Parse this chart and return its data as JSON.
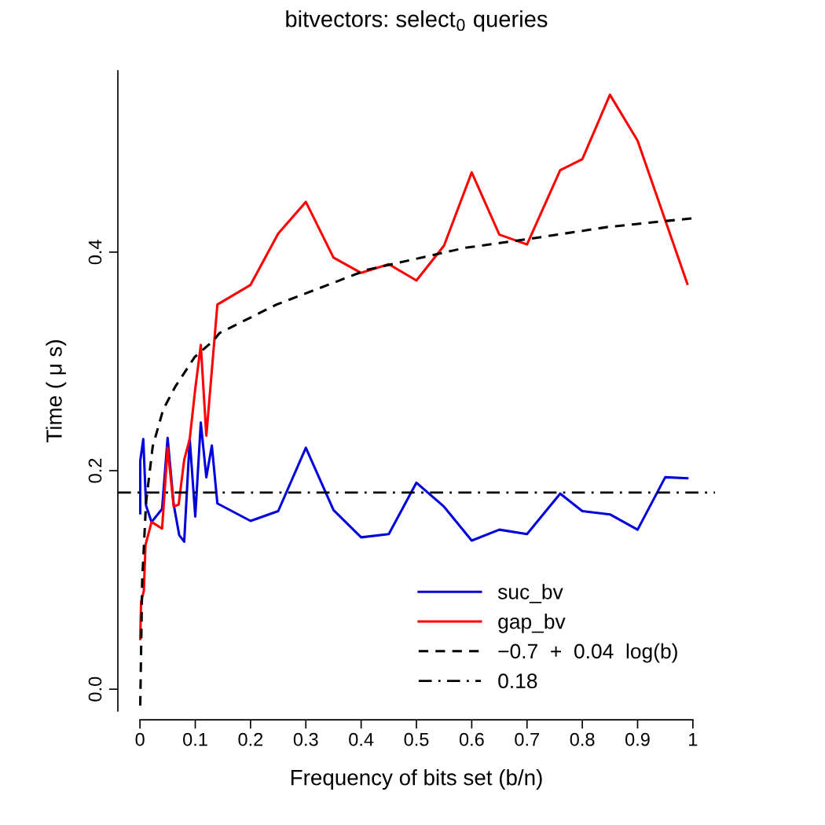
{
  "chart_data": {
    "type": "line",
    "title": "bitvectors: select$_{0}$ queries",
    "xlabel": "Frequency of bits set (b/n)",
    "ylabel": "Time ( μ s)",
    "series": [
      {
        "name": "suc_bv",
        "color": "#0000dd",
        "line_style": "solid",
        "x": [
          0.0005,
          0.0005,
          0.006,
          0.011,
          0.021,
          0.04,
          0.05,
          0.061,
          0.071,
          0.08,
          0.09,
          0.1,
          0.11,
          0.12,
          0.13,
          0.14,
          0.2,
          0.25,
          0.3,
          0.35,
          0.4,
          0.45,
          0.5,
          0.55,
          0.6,
          0.65,
          0.7,
          0.76,
          0.8,
          0.85,
          0.9,
          0.95,
          0.99
        ],
        "values": [
          0.161,
          0.209,
          0.229,
          0.168,
          0.153,
          0.165,
          0.23,
          0.169,
          0.141,
          0.135,
          0.229,
          0.158,
          0.244,
          0.194,
          0.223,
          0.17,
          0.154,
          0.163,
          0.221,
          0.164,
          0.139,
          0.142,
          0.189,
          0.167,
          0.136,
          0.146,
          0.142,
          0.179,
          0.163,
          0.16,
          0.146,
          0.194,
          0.193
        ]
      },
      {
        "name": "gap_bv",
        "color": "#ff0000",
        "line_style": "solid",
        "x": [
          0.0005,
          0.002,
          0.007,
          0.01,
          0.021,
          0.04,
          0.05,
          0.061,
          0.07,
          0.08,
          0.09,
          0.1,
          0.11,
          0.12,
          0.14,
          0.2,
          0.25,
          0.3,
          0.35,
          0.4,
          0.45,
          0.5,
          0.55,
          0.6,
          0.65,
          0.7,
          0.76,
          0.8,
          0.85,
          0.9,
          0.99
        ],
        "values": [
          0.046,
          0.08,
          0.09,
          0.132,
          0.153,
          0.147,
          0.221,
          0.167,
          0.169,
          0.21,
          0.229,
          0.275,
          0.315,
          0.232,
          0.352,
          0.37,
          0.417,
          0.446,
          0.395,
          0.381,
          0.389,
          0.374,
          0.406,
          0.473,
          0.416,
          0.407,
          0.475,
          0.485,
          0.544,
          0.502,
          0.371
        ]
      },
      {
        "name": "−0.7  +  0.04  log(b)",
        "color": "#000000",
        "line_style": "dashed",
        "x": [
          0.0005,
          0.004,
          0.011,
          0.023,
          0.042,
          0.064,
          0.099,
          0.133,
          0.144,
          0.247,
          0.412,
          0.589,
          0.703,
          0.846,
          1.0
        ],
        "values": [
          -0.015,
          0.099,
          0.171,
          0.222,
          0.256,
          0.277,
          0.304,
          0.319,
          0.326,
          0.352,
          0.384,
          0.404,
          0.412,
          0.423,
          0.431
        ]
      }
    ],
    "ref_lines": [
      {
        "axis": "y",
        "value": 0.18,
        "label": "0.18",
        "color": "#000000",
        "line_style": "dashdot"
      }
    ],
    "xlim": [
      -0.04,
      1.04
    ],
    "ylim": [
      -0.02,
      0.566
    ],
    "xticks": [
      0,
      0.1,
      0.2,
      0.3,
      0.4,
      0.5,
      0.6,
      0.7,
      0.8,
      0.9,
      1
    ],
    "yticks": [
      {
        "value": 0,
        "label": "0.0"
      },
      0.2,
      0.4
    ],
    "grid": false,
    "legend": "bottom right"
  }
}
